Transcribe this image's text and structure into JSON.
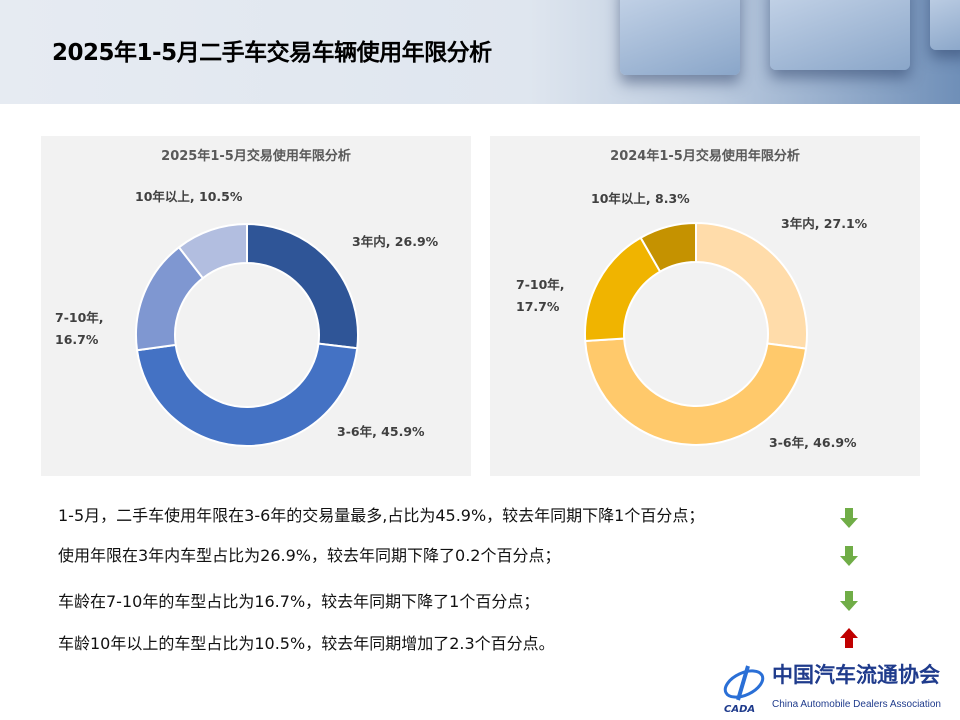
{
  "header": {
    "title": "2025年1-5月二手车交易车辆使用年限分析"
  },
  "chart_data": [
    {
      "type": "pie",
      "donut": true,
      "title": "2025年1-5月交易使用年限分析",
      "slices": [
        {
          "name": "3年内",
          "value": 26.9,
          "label": "3年内, 26.9%",
          "color": "#2f5597"
        },
        {
          "name": "3-6年",
          "value": 45.9,
          "label": "3-6年, 45.9%",
          "color": "#4472c4"
        },
        {
          "name": "7-10年",
          "value": 16.7,
          "label": "7-10年, 16.7%",
          "color": "#7f97d1"
        },
        {
          "name": "10年以上",
          "value": 10.5,
          "label": "10年以上, 10.5%",
          "color": "#b2bee0"
        }
      ]
    },
    {
      "type": "pie",
      "donut": true,
      "title": "2024年1-5月交易使用年限分析",
      "slices": [
        {
          "name": "3年内",
          "value": 27.1,
          "label": "3年内, 27.1%",
          "color": "#ffdcaa"
        },
        {
          "name": "3-6年",
          "value": 46.9,
          "label": "3-6年, 46.9%",
          "color": "#ffc96b"
        },
        {
          "name": "7-10年",
          "value": 17.7,
          "label": "7-10年, 17.7%",
          "color": "#f0b400"
        },
        {
          "name": "10年以上",
          "value": 8.3,
          "label": "10年以上, 8.3%",
          "color": "#c59200"
        }
      ]
    }
  ],
  "notes": [
    {
      "text": "1-5月，二手车使用年限在3-6年的交易量最多,占比为45.9%，较去年同期下降1个百分点；",
      "trend": "down",
      "color": "#70ad47"
    },
    {
      "text": "使用年限在3年内车型占比为26.9%，较去年同期下降了0.2个百分点；",
      "trend": "down",
      "color": "#70ad47"
    },
    {
      "text": "车龄在7-10年的车型占比为16.7%，较去年同期下降了1个百分点；",
      "trend": "down",
      "color": "#70ad47"
    },
    {
      "text": "车龄10年以上的车型占比为10.5%，较去年同期增加了2.3个百分点。",
      "trend": "up",
      "color": "#c00000"
    }
  ],
  "logo": {
    "cn": "中国汽车流通协会",
    "en": "China Automobile Dealers Association",
    "mark": "CADA"
  }
}
